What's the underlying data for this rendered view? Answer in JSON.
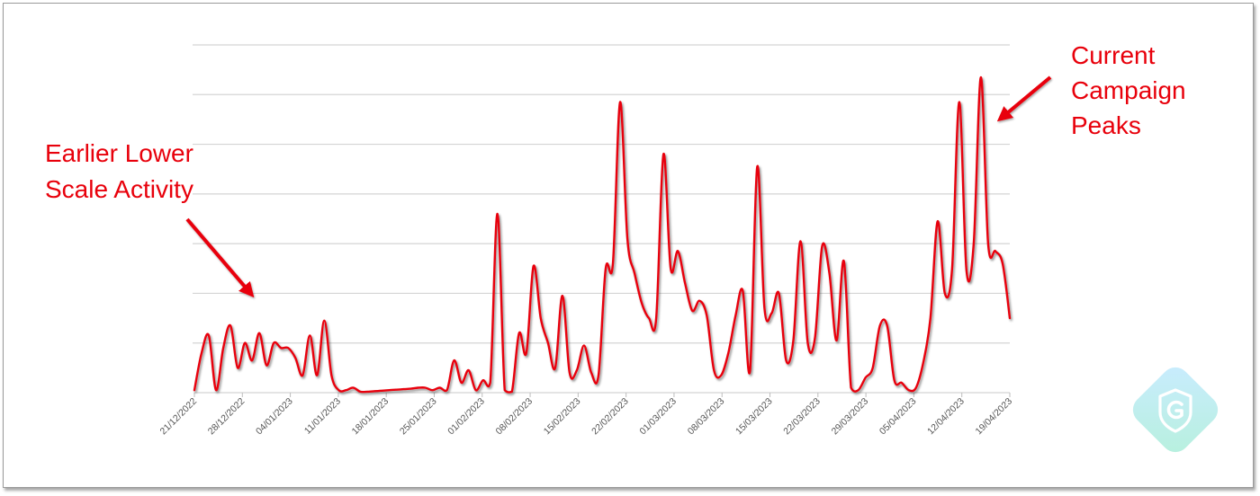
{
  "chart_data": {
    "type": "line",
    "x_tick_labels": [
      "21/12/2022",
      "28/12/2022",
      "04/01/2023",
      "11/01/2023",
      "18/01/2023",
      "25/01/2023",
      "01/02/2023",
      "08/02/2023",
      "15/02/2023",
      "22/02/2023",
      "01/03/2023",
      "08/03/2023",
      "15/03/2023",
      "22/03/2023",
      "29/03/2023",
      "05/04/2023",
      "12/04/2023",
      "19/04/2023"
    ],
    "y_gridlines": 7,
    "ylim": [
      0,
      7
    ],
    "grid": true,
    "legend": "none",
    "line_color": "#e8000b",
    "series": [
      {
        "values": [
          [
            0,
            0.05
          ],
          [
            1,
            0.8
          ],
          [
            2,
            1.15
          ],
          [
            3,
            0.05
          ],
          [
            4,
            0.9
          ],
          [
            5,
            1.35
          ],
          [
            6,
            0.5
          ],
          [
            7,
            1.0
          ],
          [
            8,
            0.65
          ],
          [
            9,
            1.2
          ],
          [
            10,
            0.55
          ],
          [
            11,
            1.0
          ],
          [
            12,
            0.9
          ],
          [
            13,
            0.9
          ],
          [
            14,
            0.7
          ],
          [
            15,
            0.35
          ],
          [
            16,
            1.15
          ],
          [
            17,
            0.35
          ],
          [
            18,
            1.45
          ],
          [
            19,
            0.35
          ],
          [
            20,
            0.05
          ],
          [
            21,
            0.05
          ],
          [
            22,
            0.1
          ],
          [
            23,
            0.02
          ],
          [
            24,
            0.02
          ],
          [
            25,
            0.03
          ],
          [
            26,
            0.04
          ],
          [
            27,
            0.05
          ],
          [
            28,
            0.06
          ],
          [
            29,
            0.07
          ],
          [
            30,
            0.08
          ],
          [
            31,
            0.1
          ],
          [
            32,
            0.1
          ],
          [
            33,
            0.05
          ],
          [
            34,
            0.1
          ],
          [
            35,
            0.05
          ],
          [
            36,
            0.65
          ],
          [
            37,
            0.2
          ],
          [
            38,
            0.45
          ],
          [
            39,
            0.05
          ],
          [
            40,
            0.25
          ],
          [
            41,
            0.2
          ],
          [
            42,
            3.6
          ],
          [
            43,
            0.05
          ],
          [
            44,
            0.02
          ],
          [
            45,
            1.2
          ],
          [
            46,
            0.8
          ],
          [
            47,
            2.55
          ],
          [
            48,
            1.5
          ],
          [
            49,
            1.0
          ],
          [
            50,
            0.5
          ],
          [
            51,
            1.95
          ],
          [
            52,
            0.4
          ],
          [
            53,
            0.45
          ],
          [
            54,
            0.95
          ],
          [
            55,
            0.4
          ],
          [
            56,
            0.35
          ],
          [
            57,
            2.5
          ],
          [
            58,
            2.6
          ],
          [
            59,
            5.85
          ],
          [
            60,
            3.1
          ],
          [
            61,
            2.4
          ],
          [
            62,
            1.8
          ],
          [
            63,
            1.5
          ],
          [
            64,
            1.5
          ],
          [
            65,
            4.8
          ],
          [
            66,
            2.5
          ],
          [
            67,
            2.85
          ],
          [
            68,
            2.2
          ],
          [
            69,
            1.65
          ],
          [
            70,
            1.85
          ],
          [
            71,
            1.55
          ],
          [
            72,
            0.45
          ],
          [
            73,
            0.35
          ],
          [
            74,
            0.8
          ],
          [
            75,
            1.55
          ],
          [
            76,
            2.05
          ],
          [
            77,
            0.45
          ],
          [
            78,
            4.55
          ],
          [
            79,
            1.7
          ],
          [
            80,
            1.6
          ],
          [
            81,
            2.0
          ],
          [
            82,
            0.65
          ],
          [
            83,
            1.05
          ],
          [
            84,
            3.05
          ],
          [
            85,
            1.0
          ],
          [
            86,
            1.1
          ],
          [
            87,
            2.95
          ],
          [
            88,
            2.4
          ],
          [
            89,
            1.05
          ],
          [
            90,
            2.65
          ],
          [
            91,
            0.1
          ],
          [
            92,
            0.05
          ],
          [
            93,
            0.3
          ],
          [
            94,
            0.5
          ],
          [
            95,
            1.35
          ],
          [
            96,
            1.35
          ],
          [
            97,
            0.25
          ],
          [
            98,
            0.2
          ],
          [
            99,
            0.05
          ],
          [
            100,
            0.1
          ],
          [
            101,
            0.6
          ],
          [
            102,
            1.5
          ],
          [
            103,
            3.45
          ],
          [
            104,
            2.0
          ],
          [
            105,
            2.5
          ],
          [
            106,
            5.85
          ],
          [
            107,
            2.45
          ],
          [
            108,
            3.0
          ],
          [
            109,
            6.35
          ],
          [
            110,
            3.0
          ],
          [
            111,
            2.85
          ],
          [
            112,
            2.6
          ],
          [
            113,
            1.5
          ]
        ]
      }
    ],
    "annotations": [
      {
        "lines": [
          "Earlier Lower",
          "Scale Activity"
        ]
      },
      {
        "lines": [
          "Current",
          "Campaign",
          "Peaks"
        ]
      }
    ]
  },
  "logo_icon": "g-shield-logo-icon"
}
